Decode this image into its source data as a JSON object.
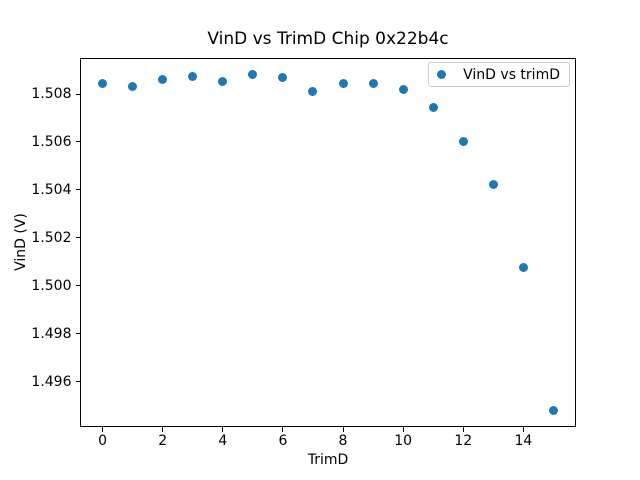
{
  "window": {
    "background": "#ffffff"
  },
  "chart_data": {
    "type": "scatter",
    "title": "VinD vs TrimD Chip 0x22b4c",
    "xlabel": "TrimD",
    "ylabel": "VinD (V)",
    "series": [
      {
        "name": "VinD vs trimD",
        "marker": "circle",
        "color": "#1f77b4",
        "x": [
          0,
          1,
          2,
          3,
          4,
          5,
          6,
          7,
          8,
          9,
          10,
          11,
          12,
          13,
          14,
          15
        ],
        "y": [
          1.50843,
          1.50833,
          1.5086,
          1.50873,
          1.50852,
          1.50882,
          1.5087,
          1.5081,
          1.50842,
          1.50846,
          1.5082,
          1.50744,
          1.506,
          1.50422,
          1.50078,
          1.4948
        ]
      }
    ],
    "xlim": [
      -0.75,
      15.75
    ],
    "ylim": [
      1.4941,
      1.50952
    ],
    "xticks": [
      0,
      2,
      4,
      6,
      8,
      10,
      12,
      14
    ],
    "xtick_labels": [
      "0",
      "2",
      "4",
      "6",
      "8",
      "10",
      "12",
      "14"
    ],
    "yticks": [
      1.496,
      1.498,
      1.5,
      1.502,
      1.504,
      1.506,
      1.508
    ],
    "ytick_labels": [
      "1.496",
      "1.498",
      "1.500",
      "1.502",
      "1.504",
      "1.506",
      "1.508"
    ],
    "grid": false,
    "legend": {
      "position": "upper-right",
      "entries": [
        {
          "label": "VinD vs trimD",
          "color": "#1f77b4"
        }
      ]
    }
  }
}
